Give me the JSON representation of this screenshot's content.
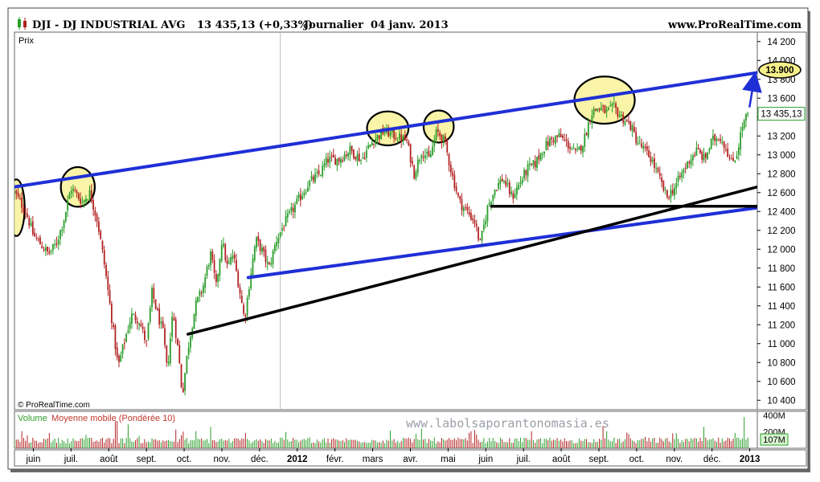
{
  "header": {
    "symbol": "DJI - DJ INDUSTRIAL AVG",
    "price": "13 435,13 (+0,33%)",
    "period": "Journalier  04 janv. 2013",
    "site": "www.ProRealTime.com"
  },
  "panel": {
    "price_label": "Prix",
    "copyright": "© ProRealTime.com",
    "watermark": "www.labolsaporantonomasia.es",
    "volume_label_1": "Volume",
    "volume_label_2": "Moyenne mobile (Pondérée 10)"
  },
  "colors": {
    "up": "#2a9d2a",
    "down": "#b22222",
    "trend_blue": "#1f2fd6",
    "trend_black": "#000000",
    "highlight": "#f7f08a",
    "target_box": "#f7f08a"
  },
  "chart_data": {
    "type": "candlestick",
    "title": "DJI - DJ INDUSTRIAL AVG",
    "ylabel": "Prix",
    "ylim": [
      10300,
      14300
    ],
    "yticks": [
      "14 200",
      "14 000",
      "13 800",
      "13 600",
      "13 400",
      "13 200",
      "13 000",
      "12 800",
      "12 600",
      "12 400",
      "12 200",
      "12 000",
      "11 800",
      "11 600",
      "11 400",
      "11 200",
      "11 000",
      "10 800",
      "10 600",
      "10 400"
    ],
    "ytick_values": [
      14200,
      14000,
      13800,
      13600,
      13400,
      13200,
      13000,
      12800,
      12600,
      12400,
      12200,
      12000,
      11800,
      11600,
      11400,
      11200,
      11000,
      10800,
      10600,
      10400
    ],
    "xticks": [
      "juin",
      "juil.",
      "août",
      "sept.",
      "oct.",
      "nov.",
      "déc.",
      "2012",
      "févr.",
      "mars",
      "avr.",
      "mai",
      "juin",
      "juil.",
      "août",
      "sept.",
      "oct.",
      "nov.",
      "déc.",
      "2013"
    ],
    "xtick_positions": [
      0.5,
      1.5,
      2.5,
      3.5,
      4.5,
      5.5,
      6.5,
      7.5,
      8.5,
      9.5,
      10.5,
      11.5,
      12.5,
      13.5,
      14.5,
      15.5,
      16.5,
      17.5,
      18.5,
      19.5
    ],
    "x_range": [
      0,
      19.7
    ],
    "last_price_label": "13 435,13",
    "last_price": 13435,
    "target_label": "13.900",
    "target_price": 13900,
    "anchors": [
      [
        0.0,
        12600
      ],
      [
        0.3,
        12400
      ],
      [
        0.5,
        12150
      ],
      [
        0.7,
        12050
      ],
      [
        0.9,
        11950
      ],
      [
        1.1,
        12050
      ],
      [
        1.3,
        12300
      ],
      [
        1.5,
        12650
      ],
      [
        1.8,
        12500
      ],
      [
        2.0,
        12600
      ],
      [
        2.2,
        12300
      ],
      [
        2.4,
        11800
      ],
      [
        2.6,
        11200
      ],
      [
        2.75,
        10750
      ],
      [
        2.9,
        11000
      ],
      [
        3.1,
        11300
      ],
      [
        3.3,
        11250
      ],
      [
        3.5,
        11000
      ],
      [
        3.65,
        11550
      ],
      [
        3.8,
        11300
      ],
      [
        3.95,
        11100
      ],
      [
        4.05,
        10700
      ],
      [
        4.2,
        11350
      ],
      [
        4.35,
        10900
      ],
      [
        4.45,
        10450
      ],
      [
        4.6,
        10950
      ],
      [
        4.8,
        11400
      ],
      [
        5.0,
        11600
      ],
      [
        5.2,
        11950
      ],
      [
        5.35,
        11600
      ],
      [
        5.5,
        12100
      ],
      [
        5.65,
        11800
      ],
      [
        5.8,
        11950
      ],
      [
        6.0,
        11500
      ],
      [
        6.1,
        11250
      ],
      [
        6.25,
        11700
      ],
      [
        6.4,
        12100
      ],
      [
        6.55,
        12000
      ],
      [
        6.75,
        11800
      ],
      [
        6.95,
        12100
      ],
      [
        7.2,
        12300
      ],
      [
        7.5,
        12500
      ],
      [
        7.8,
        12700
      ],
      [
        8.1,
        12800
      ],
      [
        8.3,
        12950
      ],
      [
        8.6,
        12950
      ],
      [
        8.9,
        13050
      ],
      [
        9.2,
        12950
      ],
      [
        9.5,
        13150
      ],
      [
        9.8,
        13250
      ],
      [
        10.1,
        13200
      ],
      [
        10.4,
        13150
      ],
      [
        10.6,
        12800
      ],
      [
        10.8,
        13050
      ],
      [
        11.0,
        12950
      ],
      [
        11.2,
        13250
      ],
      [
        11.4,
        13150
      ],
      [
        11.6,
        12800
      ],
      [
        11.8,
        12500
      ],
      [
        12.0,
        12400
      ],
      [
        12.2,
        12300
      ],
      [
        12.35,
        12050
      ],
      [
        12.55,
        12450
      ],
      [
        12.75,
        12650
      ],
      [
        12.95,
        12750
      ],
      [
        13.2,
        12550
      ],
      [
        13.4,
        12700
      ],
      [
        13.6,
        12850
      ],
      [
        13.8,
        12900
      ],
      [
        14.0,
        13050
      ],
      [
        14.2,
        13150
      ],
      [
        14.45,
        13200
      ],
      [
        14.7,
        13100
      ],
      [
        14.9,
        13000
      ],
      [
        15.1,
        13150
      ],
      [
        15.3,
        13450
      ],
      [
        15.5,
        13500
      ],
      [
        15.7,
        13450
      ],
      [
        15.9,
        13500
      ],
      [
        16.1,
        13400
      ],
      [
        16.35,
        13300
      ],
      [
        16.5,
        13150
      ],
      [
        16.7,
        13050
      ],
      [
        16.9,
        12950
      ],
      [
        17.1,
        12750
      ],
      [
        17.3,
        12550
      ],
      [
        17.5,
        12650
      ],
      [
        17.7,
        12800
      ],
      [
        17.9,
        12950
      ],
      [
        18.1,
        13050
      ],
      [
        18.3,
        12950
      ],
      [
        18.5,
        13150
      ],
      [
        18.7,
        13200
      ],
      [
        18.9,
        13050
      ],
      [
        19.0,
        12900
      ],
      [
        19.15,
        13000
      ],
      [
        19.3,
        13300
      ],
      [
        19.45,
        13435
      ]
    ],
    "trendlines": [
      {
        "name": "upper-channel",
        "color": "blue",
        "from": [
          0.0,
          12660
        ],
        "to": [
          19.7,
          13870
        ]
      },
      {
        "name": "lower-channel",
        "color": "blue",
        "from": [
          6.2,
          11700
        ],
        "to": [
          19.7,
          12440
        ]
      },
      {
        "name": "long-support",
        "color": "black",
        "from": [
          4.6,
          11100
        ],
        "to": [
          19.7,
          12660
        ]
      },
      {
        "name": "horizontal-support",
        "color": "black",
        "from": [
          12.65,
          12455
        ],
        "to": [
          19.7,
          12455
        ]
      }
    ],
    "ellipses": [
      {
        "x": 0.05,
        "y": 12440,
        "rx": 0.22,
        "ry": 300
      },
      {
        "x": 1.68,
        "y": 12660,
        "rx": 0.45,
        "ry": 210
      },
      {
        "x": 9.9,
        "y": 13280,
        "rx": 0.55,
        "ry": 180
      },
      {
        "x": 11.25,
        "y": 13300,
        "rx": 0.4,
        "ry": 170
      },
      {
        "x": 15.65,
        "y": 13580,
        "rx": 0.8,
        "ry": 250
      }
    ],
    "volume": {
      "label": "Volume Moyenne mobile (Pondérée 10)",
      "yticks": [
        "400M",
        "200M"
      ],
      "ytick_values": [
        400,
        200
      ],
      "ylim": [
        0,
        450
      ],
      "last_label": "107M",
      "last_value": 107,
      "spikes": [
        [
          2.7,
          330
        ],
        [
          3.0,
          290
        ],
        [
          5.2,
          260
        ],
        [
          10.8,
          240
        ],
        [
          12.2,
          220
        ],
        [
          15.6,
          270
        ],
        [
          18.3,
          260
        ],
        [
          19.35,
          380
        ]
      ]
    }
  }
}
